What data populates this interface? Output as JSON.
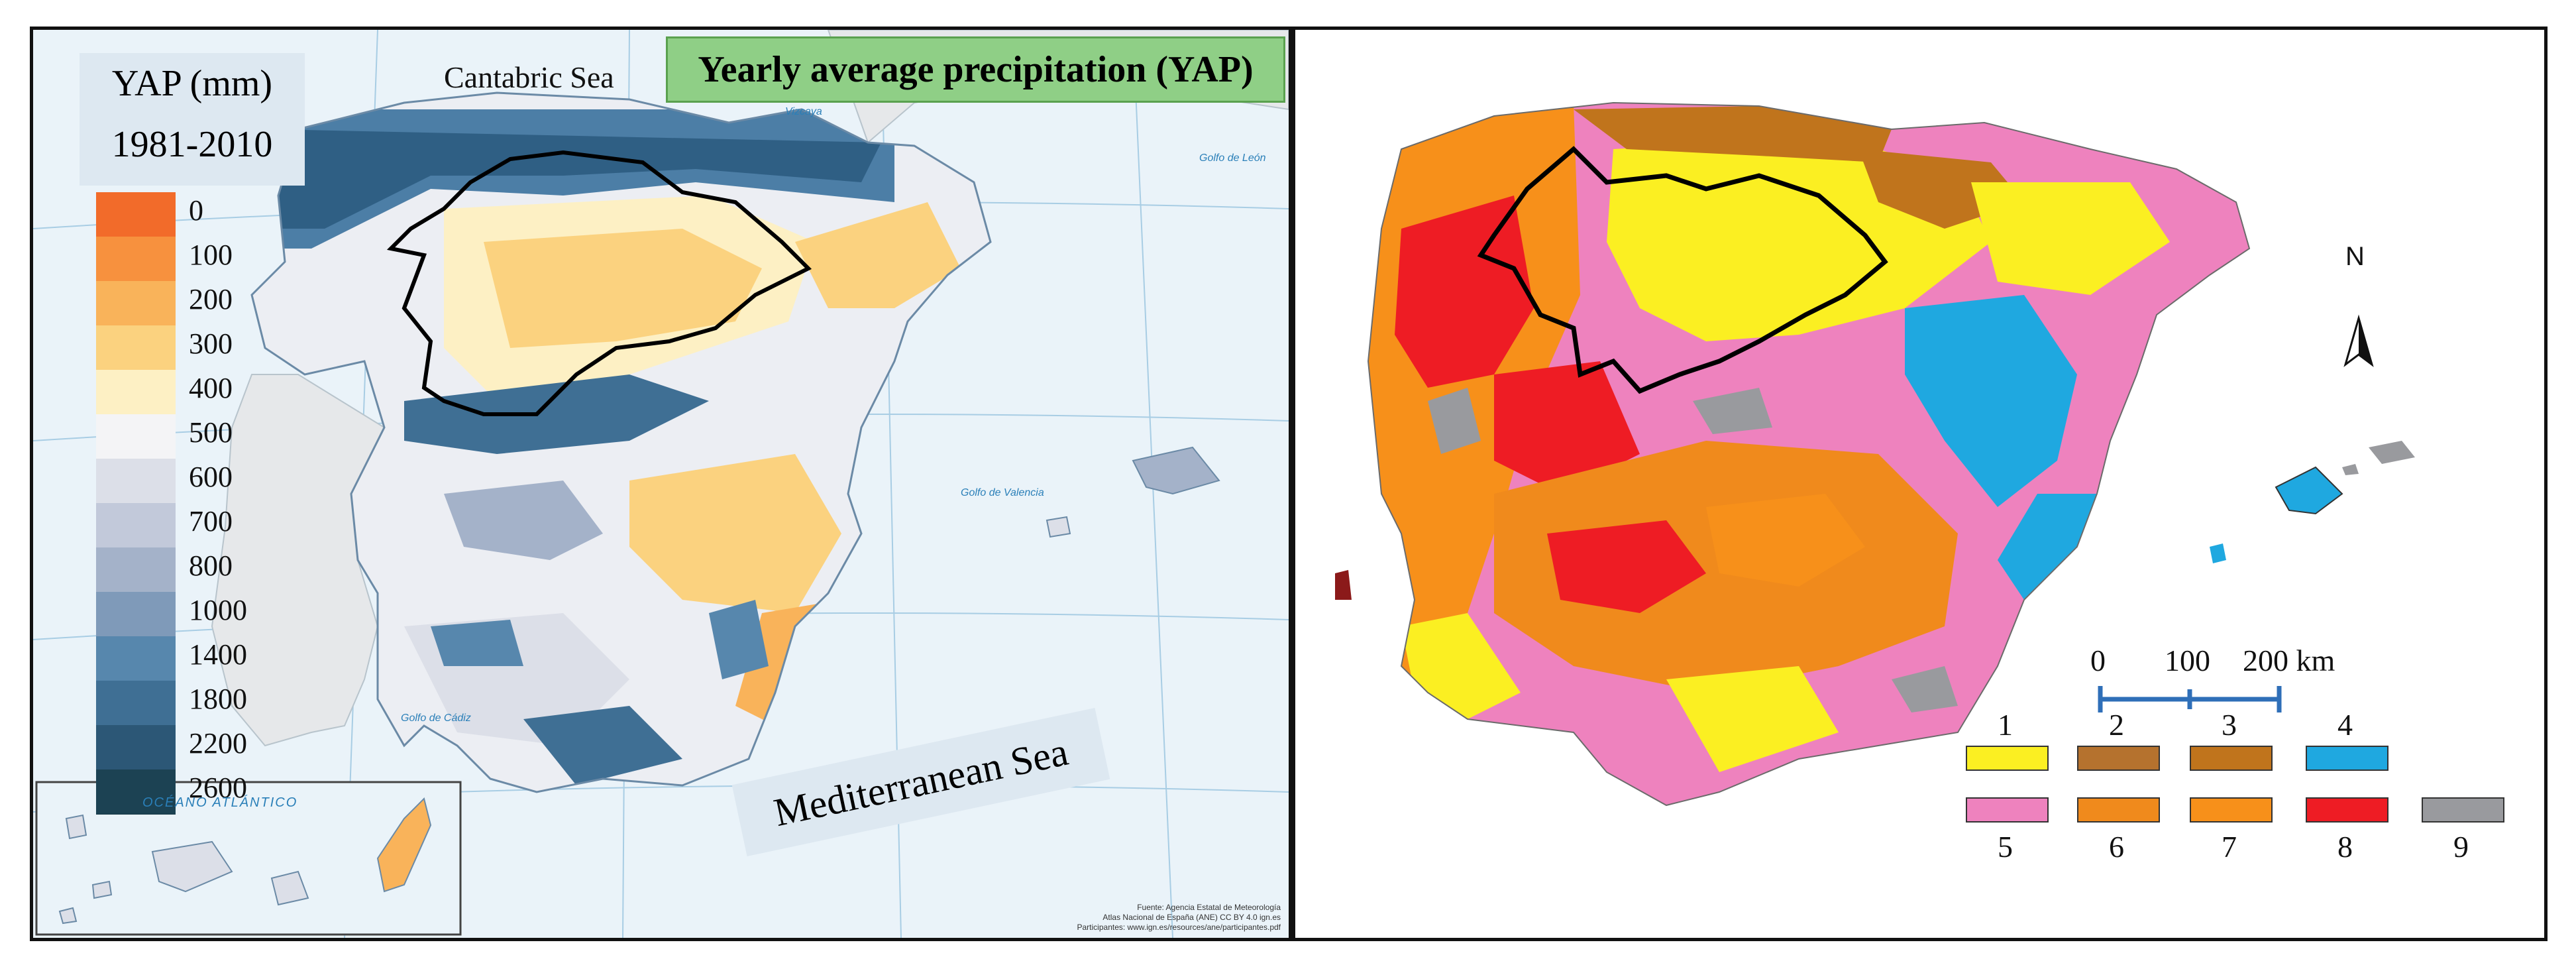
{
  "left_map": {
    "legend": {
      "title": "YAP (mm)",
      "period": "1981-2010",
      "classes": [
        {
          "label": "0",
          "color": "#f26b2a"
        },
        {
          "label": "100",
          "color": "#f7913e"
        },
        {
          "label": "200",
          "color": "#f9b35a"
        },
        {
          "label": "300",
          "color": "#fbd27f"
        },
        {
          "label": "400",
          "color": "#fdf0c4"
        },
        {
          "label": "500",
          "color": "#f4f4f6"
        },
        {
          "label": "600",
          "color": "#dcdfe8"
        },
        {
          "label": "700",
          "color": "#c2c9da"
        },
        {
          "label": "800",
          "color": "#a4b2c9"
        },
        {
          "label": "1000",
          "color": "#7f9ab9"
        },
        {
          "label": "1400",
          "color": "#5787ad"
        },
        {
          "label": "1800",
          "color": "#3f6f94"
        },
        {
          "label": "2200",
          "color": "#2c5776"
        },
        {
          "label": "2600",
          "color": "#1c4253"
        }
      ]
    },
    "title": "Yearly average precipitation (YAP)",
    "labels": {
      "cantabric": "Cantabric Sea",
      "mediterranean": "Mediterranean Sea",
      "vizcaya": "Vizcaya",
      "leon": "Golfo de León",
      "valencia": "Golfo de Valencia",
      "cadiz": "Golfo de Cádiz",
      "atlantico": "OCÉANO  ATLÁNTICO"
    },
    "credit": [
      "Fuente: Agencia Estatal de Meteorología",
      "Atlas Nacional de España (ANE) CC BY 4.0 ign.es",
      "Participantes: www.ign.es/resources/ane/participantes.pdf"
    ]
  },
  "right_map": {
    "north": "N",
    "scale": {
      "ticks": [
        "0",
        "100",
        "200 km"
      ]
    },
    "lithology_legend": [
      {
        "num": "1",
        "color": "#fbef22"
      },
      {
        "num": "2",
        "color": "#b5722e"
      },
      {
        "num": "3",
        "color": "#c0741c"
      },
      {
        "num": "4",
        "color": "#1fa8e0"
      },
      {
        "num": "5",
        "color": "#ee82be"
      },
      {
        "num": "6",
        "color": "#f08a1c"
      },
      {
        "num": "7",
        "color": "#f7901a"
      },
      {
        "num": "8",
        "color": "#ee1c24"
      },
      {
        "num": "9",
        "color": "#999a9e"
      }
    ]
  }
}
